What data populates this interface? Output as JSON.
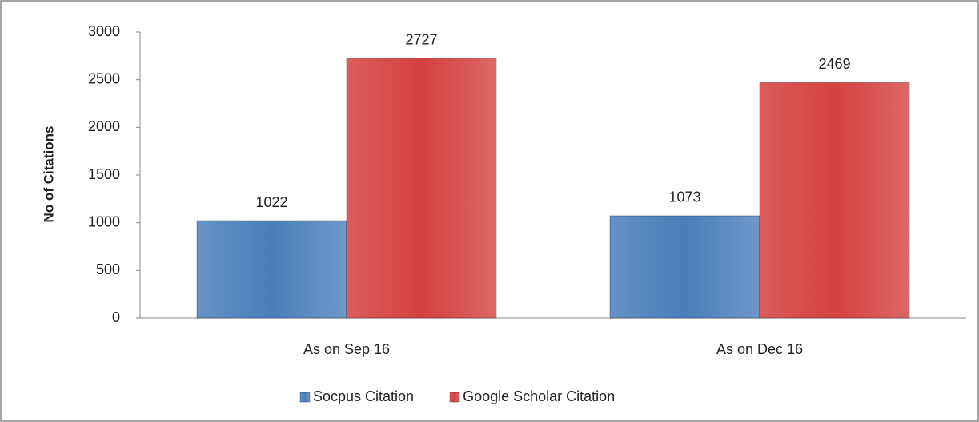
{
  "chart_data": {
    "type": "bar",
    "categories": [
      "As on Sep 16",
      "As on Dec 16"
    ],
    "series": [
      {
        "name": "Socpus Citation",
        "color": "#4a7ebb",
        "values": [
          1022,
          1073
        ]
      },
      {
        "name": "Google Scholar Citation",
        "color": "#d4413f",
        "values": [
          2727,
          2469
        ]
      }
    ],
    "y_label": "No of Citations",
    "ylim": [
      0,
      3000
    ],
    "yticks": [
      0,
      500,
      1000,
      1500,
      2000,
      2500,
      3000
    ],
    "grid": false,
    "legend": "bottom"
  }
}
